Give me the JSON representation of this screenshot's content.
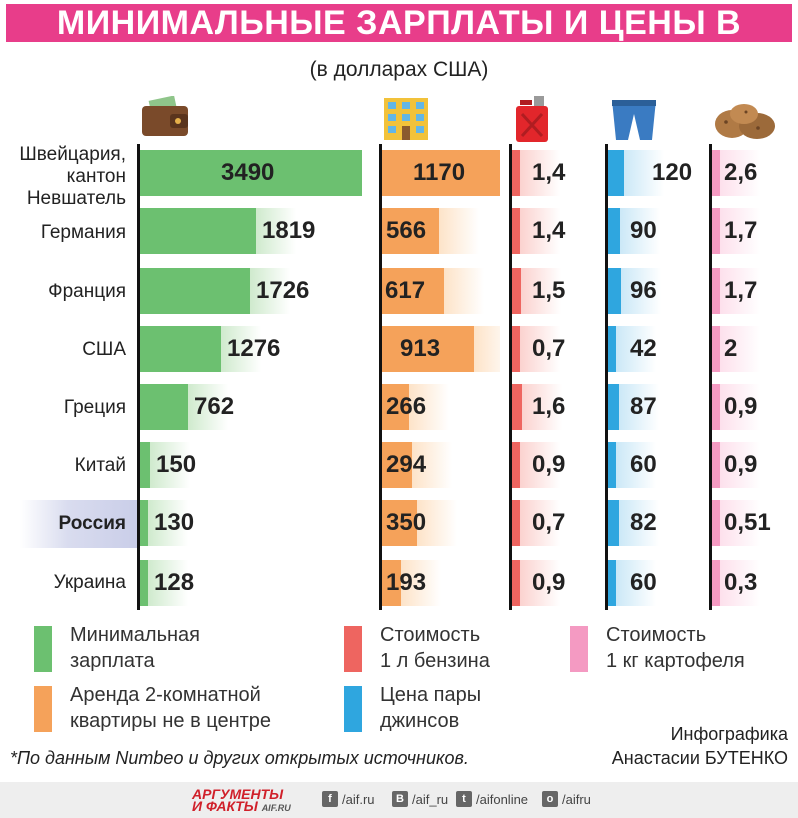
{
  "title": "МИНИМАЛЬНЫЕ ЗАРПЛАТЫ И ЦЕНЫ В МИРЕ",
  "subtitle": "(в долларах США)",
  "icons": [
    "wallet-icon",
    "building-icon",
    "fuel-can-icon",
    "jeans-icon",
    "potatoes-icon"
  ],
  "chart_data": {
    "type": "bar",
    "categories": [
      "Швейцария, кантон Невшатель",
      "Германия",
      "Франция",
      "США",
      "Греция",
      "Китай",
      "Россия",
      "Украина"
    ],
    "category_lines": [
      [
        "Швейцария,",
        "кантон",
        "Невшатель"
      ],
      [
        "Германия"
      ],
      [
        "Франция"
      ],
      [
        "США"
      ],
      [
        "Греция"
      ],
      [
        "Китай"
      ],
      [
        "Россия"
      ],
      [
        "Украина"
      ]
    ],
    "highlight": "Россия",
    "series": [
      {
        "name": "Минимальная зарплата",
        "color": "#6cc070",
        "light": "#cfeacd",
        "max": 3490,
        "values": [
          3490,
          1819,
          1726,
          1276,
          762,
          150,
          130,
          128
        ],
        "labels": [
          "3490",
          "1819",
          "1726",
          "1276",
          "762",
          "150",
          "130",
          "128"
        ]
      },
      {
        "name": "Аренда 2-комнатной квартиры не в центре",
        "color": "#f5a25a",
        "light": "#fde3c8",
        "max": 1170,
        "values": [
          1170,
          566,
          617,
          913,
          266,
          294,
          350,
          193
        ],
        "labels": [
          "1170",
          "566",
          "617",
          "913",
          "266",
          "294",
          "350",
          "193"
        ]
      },
      {
        "name": "Стоимость 1 л бензина",
        "color": "#ee6560",
        "light": "#fbd2cf",
        "max": 12,
        "values": [
          1.4,
          1.4,
          1.5,
          0.7,
          1.6,
          0.9,
          0.7,
          0.9
        ],
        "labels": [
          "1,4",
          "1,4",
          "1,5",
          "0,7",
          "1,6",
          "0,9",
          "0,7",
          "0,9"
        ]
      },
      {
        "name": "Цена пары джинсов",
        "color": "#2fa6df",
        "light": "#cbe8f7",
        "max": 700,
        "values": [
          120,
          90,
          96,
          42,
          87,
          60,
          82,
          60
        ],
        "labels": [
          "120",
          "90",
          "96",
          "42",
          "87",
          "60",
          "82",
          "60"
        ]
      },
      {
        "name": "Стоимость 1 кг картофеля",
        "color": "#f49ac2",
        "light": "#fde0ec",
        "max": 40,
        "values": [
          2.6,
          1.7,
          1.7,
          2,
          0.9,
          0.9,
          0.51,
          0.3
        ],
        "labels": [
          "2,6",
          "1,7",
          "1,7",
          "2",
          "0,9",
          "0,9",
          "0,51",
          "0,3"
        ]
      }
    ]
  },
  "legend": [
    {
      "lines": [
        "Минимальная",
        "зарплата"
      ],
      "color": "#6cc070"
    },
    {
      "lines": [
        "Стоимость",
        "1 л бензина"
      ],
      "color": "#ee6560"
    },
    {
      "lines": [
        "Стоимость",
        "1 кг картофеля"
      ],
      "color": "#f49ac2"
    },
    {
      "lines": [
        "Аренда 2-комнатной",
        "квартиры не в центре"
      ],
      "color": "#f5a25a"
    },
    {
      "lines": [
        "Цена пары",
        "джинсов"
      ],
      "color": "#2fa6df"
    }
  ],
  "footnote": "*По данным Numbeo и других открытых источников.",
  "credit": [
    "Инфографика",
    "Анастасии БУТЕНКО"
  ],
  "footer": {
    "brand": [
      "АРГУМЕНТЫ",
      "И ФАКТЫ"
    ],
    "brand_domain": "AIF.RU",
    "social": [
      {
        "glyph": "f",
        "text": "/aif.ru"
      },
      {
        "glyph": "B",
        "text": "/aif_ru"
      },
      {
        "glyph": "t",
        "text": "/aifonline"
      },
      {
        "glyph": "o",
        "text": "/aifru"
      }
    ]
  }
}
